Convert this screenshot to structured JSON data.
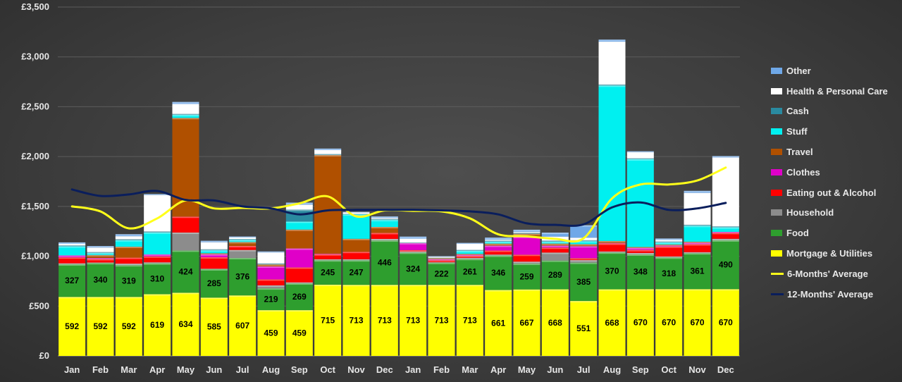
{
  "chart_data": {
    "type": "bar",
    "stacked": true,
    "title": "",
    "xlabel": "",
    "ylabel": "",
    "ylim": [
      0,
      3500
    ],
    "y_ticks": [
      "£0",
      "£500",
      "£1,000",
      "£1,500",
      "£2,000",
      "£2,500",
      "£3,000",
      "£3,500"
    ],
    "y_tick_values": [
      0,
      500,
      1000,
      1500,
      2000,
      2500,
      3000,
      3500
    ],
    "grid": true,
    "legend_position": "right",
    "categories": [
      "Jan",
      "Feb",
      "Mar",
      "Apr",
      "May",
      "Jun",
      "Jul",
      "Aug",
      "Sep",
      "Oct",
      "Nov",
      "Dec",
      "Jan",
      "Feb",
      "Mar",
      "Apr",
      "May",
      "Jun",
      "Jul",
      "Aug",
      "Sep",
      "Oct",
      "Nov",
      "Dec"
    ],
    "series": [
      {
        "name": "Mortgage & Utilities",
        "color": "#ffff00",
        "show_labels": true,
        "values": [
          592,
          592,
          592,
          619,
          634,
          585,
          607,
          459,
          459,
          715,
          713,
          713,
          713,
          713,
          713,
          661,
          667,
          668,
          551,
          668,
          670,
          670,
          670,
          670
        ]
      },
      {
        "name": "Food",
        "color": "#2e9e2e",
        "show_labels": true,
        "values": [
          327,
          340,
          319,
          310,
          424,
          285,
          376,
          219,
          269,
          245,
          247,
          446,
          324,
          222,
          261,
          346,
          259,
          289,
          385,
          370,
          348,
          318,
          361,
          490
        ]
      },
      {
        "name": "Household",
        "color": "#8c8c8c",
        "show_labels": false,
        "values": [
          10,
          5,
          15,
          10,
          180,
          5,
          80,
          30,
          10,
          10,
          10,
          15,
          10,
          5,
          10,
          10,
          20,
          80,
          25,
          10,
          15,
          10,
          10,
          15
        ]
      },
      {
        "name": "Eating out & Alcohol",
        "color": "#ff0000",
        "show_labels": false,
        "values": [
          60,
          35,
          60,
          60,
          160,
          115,
          40,
          60,
          150,
          50,
          75,
          60,
          15,
          20,
          20,
          40,
          70,
          50,
          20,
          80,
          30,
          100,
          80,
          60
        ]
      },
      {
        "name": "Clothes",
        "color": "#e000c8",
        "show_labels": false,
        "values": [
          20,
          10,
          0,
          20,
          0,
          30,
          0,
          130,
          190,
          5,
          0,
          0,
          70,
          10,
          10,
          50,
          180,
          20,
          120,
          5,
          20,
          10,
          15,
          10
        ]
      },
      {
        "name": "Travel",
        "color": "#b05000",
        "show_labels": false,
        "values": [
          0,
          30,
          110,
          0,
          990,
          10,
          40,
          20,
          190,
          990,
          130,
          60,
          0,
          10,
          10,
          20,
          30,
          20,
          20,
          20,
          10,
          10,
          10,
          0
        ]
      },
      {
        "name": "Stuff",
        "color": "#00f0f0",
        "show_labels": false,
        "values": [
          90,
          20,
          65,
          220,
          30,
          30,
          20,
          0,
          80,
          0,
          245,
          70,
          0,
          0,
          30,
          20,
          0,
          20,
          30,
          1560,
          880,
          20,
          160,
          45
        ]
      },
      {
        "name": "Cash",
        "color": "#2a8aa0",
        "show_labels": false,
        "values": [
          10,
          10,
          10,
          10,
          10,
          10,
          10,
          10,
          120,
          10,
          5,
          10,
          5,
          5,
          10,
          10,
          10,
          10,
          10,
          10,
          10,
          10,
          10,
          10
        ]
      },
      {
        "name": "Health & Personal Care",
        "color": "#ffffff",
        "show_labels": false,
        "values": [
          15,
          45,
          30,
          365,
          100,
          70,
          15,
          110,
          50,
          40,
          15,
          10,
          40,
          10,
          60,
          10,
          10,
          40,
          25,
          430,
          60,
          15,
          320,
          690
        ]
      },
      {
        "name": "Other",
        "color": "#6fa8e8",
        "show_labels": false,
        "values": [
          15,
          15,
          20,
          10,
          20,
          15,
          10,
          10,
          20,
          15,
          5,
          15,
          20,
          5,
          10,
          20,
          20,
          40,
          125,
          20,
          10,
          15,
          20,
          15
        ]
      }
    ],
    "lines": [
      {
        "name": "6-Months' Average",
        "color": "#ffff1a",
        "values": [
          1500,
          1450,
          1280,
          1380,
          1560,
          1480,
          1485,
          1480,
          1530,
          1600,
          1400,
          1460,
          1455,
          1450,
          1380,
          1220,
          1200,
          1175,
          1180,
          1580,
          1720,
          1720,
          1760,
          1890
        ]
      },
      {
        "name": "12-Months' Average",
        "color": "#0a1e5c",
        "values": [
          1670,
          1605,
          1620,
          1655,
          1565,
          1560,
          1500,
          1480,
          1420,
          1460,
          1465,
          1465,
          1465,
          1460,
          1450,
          1420,
          1330,
          1315,
          1320,
          1490,
          1540,
          1465,
          1480,
          1535
        ]
      }
    ],
    "legend_order": [
      "Other",
      "Health & Personal Care",
      "Cash",
      "Stuff",
      "Travel",
      "Clothes",
      "Eating out & Alcohol",
      "Household",
      "Food",
      "Mortgage & Utilities",
      "6-Months' Average",
      "12-Months' Average"
    ]
  }
}
